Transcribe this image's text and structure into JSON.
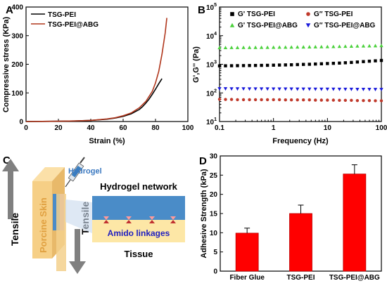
{
  "panel_labels": [
    "A",
    "B",
    "C",
    "D"
  ],
  "chart_data": [
    {
      "panel": "A",
      "type": "line",
      "xlabel": "Strain (%)",
      "ylabel": "Compressive stress (KPa)",
      "xlim": [
        0,
        100
      ],
      "ylim": [
        0,
        400
      ],
      "xticks": [
        0,
        20,
        40,
        60,
        80,
        100
      ],
      "yticks": [
        0,
        100,
        200,
        300,
        400
      ],
      "legend_position": "top-left",
      "series": [
        {
          "name": "TSG-PEI",
          "color": "#000000",
          "x": [
            0,
            10,
            20,
            30,
            40,
            50,
            55,
            60,
            65,
            70,
            72,
            74,
            76,
            78,
            80,
            82,
            84
          ],
          "y": [
            0,
            0.5,
            1,
            2,
            4,
            8,
            12,
            18,
            27,
            42,
            52,
            64,
            78,
            95,
            113,
            132,
            150
          ]
        },
        {
          "name": "TSG-PEI@ABG",
          "color": "#b0361c",
          "x": [
            0,
            10,
            20,
            30,
            40,
            50,
            55,
            60,
            65,
            70,
            74,
            78,
            80,
            82,
            84,
            86,
            87
          ],
          "y": [
            0,
            0.5,
            1,
            2,
            4,
            9,
            13,
            20,
            30,
            48,
            70,
            105,
            135,
            175,
            235,
            310,
            362
          ]
        }
      ]
    },
    {
      "panel": "B",
      "type": "scatter",
      "xlabel": "Frequency (Hz)",
      "ylabel": "G',G'' (Pa)",
      "xscale": "log",
      "yscale": "log",
      "xlim": [
        0.1,
        100
      ],
      "ylim": [
        10,
        100000
      ],
      "xticks": [
        "0.1",
        "1",
        "10",
        "100"
      ],
      "yticks": [
        {
          "base": "10",
          "exp": "1"
        },
        {
          "base": "10",
          "exp": "2"
        },
        {
          "base": "10",
          "exp": "3"
        },
        {
          "base": "10",
          "exp": "4"
        },
        {
          "base": "10",
          "exp": "5"
        }
      ],
      "legend_position": "top",
      "x": [
        0.1,
        0.129,
        0.167,
        0.215,
        0.278,
        0.359,
        0.464,
        0.599,
        0.774,
        1,
        1.29,
        1.67,
        2.15,
        2.78,
        3.59,
        4.64,
        5.99,
        7.74,
        10,
        12.9,
        16.7,
        21.5,
        27.8,
        35.9,
        46.4,
        59.9,
        77.4,
        100
      ],
      "series": [
        {
          "name": "G' TSG-PEI",
          "marker": "square",
          "color": "#000000",
          "y": [
            880,
            885,
            890,
            895,
            900,
            905,
            910,
            915,
            920,
            930,
            940,
            950,
            960,
            975,
            990,
            1000,
            1020,
            1040,
            1060,
            1080,
            1100,
            1130,
            1160,
            1200,
            1240,
            1280,
            1320,
            1360
          ]
        },
        {
          "name": "G″ TSG-PEI",
          "marker": "circle",
          "color": "#c0392b",
          "y": [
            60,
            59,
            59,
            58,
            58,
            58,
            58,
            58,
            58,
            58,
            58,
            57,
            57,
            57,
            57,
            57,
            56,
            56,
            56,
            56,
            55,
            55,
            55,
            54,
            54,
            54,
            53,
            53
          ]
        },
        {
          "name": "G' TSG-PEI@ABG",
          "marker": "triangle-up",
          "color": "#4bd13c",
          "y": [
            3800,
            3820,
            3840,
            3850,
            3860,
            3870,
            3880,
            3890,
            3900,
            3920,
            3940,
            3960,
            3980,
            4000,
            4020,
            4050,
            4080,
            4100,
            4130,
            4160,
            4200,
            4240,
            4280,
            4320,
            4360,
            4400,
            4440,
            4480
          ]
        },
        {
          "name": "G″ TSG-PEI@ABG",
          "marker": "triangle-down",
          "color": "#1a1adb",
          "y": [
            140,
            140,
            139,
            139,
            139,
            138,
            138,
            138,
            138,
            137,
            137,
            137,
            137,
            136,
            136,
            136,
            135,
            135,
            135,
            135,
            134,
            134,
            134,
            133,
            133,
            133,
            132,
            132
          ]
        }
      ]
    },
    {
      "panel": "D",
      "type": "bar",
      "ylabel": "Adhesive Strength (kPa)",
      "ylim": [
        0,
        30
      ],
      "yticks": [
        0,
        5,
        10,
        15,
        20,
        25,
        30
      ],
      "categories": [
        "Fiber Glue",
        "TSG-PEI",
        "TSG-PEI@ABG"
      ],
      "values": [
        9.9,
        15.0,
        25.3
      ],
      "errors": [
        1.3,
        2.2,
        2.4
      ],
      "color": "#ff0000"
    }
  ],
  "diagram": {
    "panel": "C",
    "labels": {
      "hydrogel": "Hydrogel",
      "porcine_skin": "Porcine Skin",
      "tensile_left": "Tensile",
      "tensile_right": "Tensile",
      "hydrogel_network": "Hydrogel network",
      "amido_linkages": "Amido linkages",
      "tissue": "Tissue"
    },
    "colors": {
      "skin": "#f6cf86",
      "hydrogel": "#4a8cc8",
      "tissue": "#fde7a6",
      "amido_text": "#2020c0",
      "arrow": "#808080"
    }
  }
}
